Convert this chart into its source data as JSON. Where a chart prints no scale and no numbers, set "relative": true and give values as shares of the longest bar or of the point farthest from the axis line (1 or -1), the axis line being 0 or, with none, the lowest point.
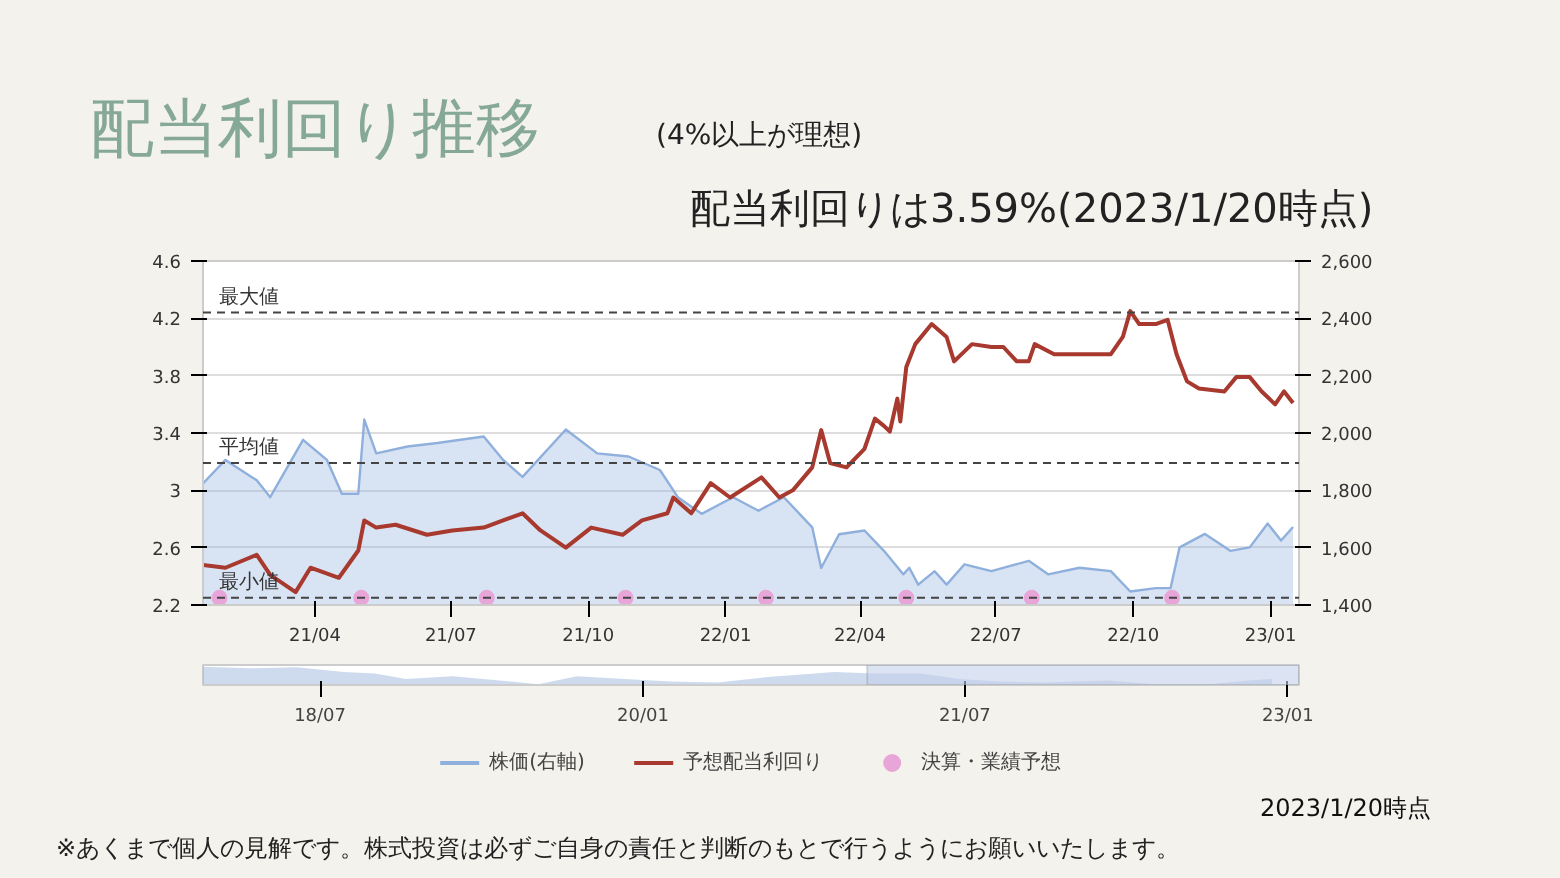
{
  "chart_data": [
    {
      "type": "line",
      "title": "配当利回り推移",
      "subtitle": "(4%以上が理想)",
      "annotations": [
        "配当利回りは3.59%(2023/1/20時点)",
        "2023/1/20時点",
        "※あくまで個人の見解です。株式投資は必ずご自身の責任と判断のもとで行うようにお願いいたします。"
      ],
      "xlim": [
        "2021-01-16",
        "2023-01-20"
      ],
      "xticks": [
        {
          "value": "2021-04-01",
          "label": "21/04"
        },
        {
          "value": "2021-07-01",
          "label": "21/07"
        },
        {
          "value": "2021-10-01",
          "label": "21/10"
        },
        {
          "value": "2022-01-01",
          "label": "22/01"
        },
        {
          "value": "2022-04-01",
          "label": "22/04"
        },
        {
          "value": "2022-07-01",
          "label": "22/07"
        },
        {
          "value": "2022-10-01",
          "label": "22/10"
        },
        {
          "value": "2023-01-01",
          "label": "23/01"
        }
      ],
      "ylim": [
        2.2,
        4.6
      ],
      "yticks": [
        2.2,
        2.6,
        3,
        3.4,
        3.8,
        4.2,
        4.6
      ],
      "y2lim": [
        1400,
        2600
      ],
      "y2ticks": [
        {
          "value": 1400,
          "label": "1,400"
        },
        {
          "value": 1600,
          "label": "1,600"
        },
        {
          "value": 1800,
          "label": "1,800"
        },
        {
          "value": 2000,
          "label": "2,000"
        },
        {
          "value": 2200,
          "label": "2,200"
        },
        {
          "value": 2400,
          "label": "2,400"
        },
        {
          "value": 2600,
          "label": "2,600"
        }
      ],
      "grid": "y",
      "legend": "bottom",
      "ref_lines": [
        {
          "axis": "y",
          "value": 4.24,
          "label": "最大値",
          "line_style": "dashed"
        },
        {
          "axis": "y",
          "value": 3.19,
          "label": "平均値",
          "line_style": "dashed"
        },
        {
          "axis": "y",
          "value": 2.25,
          "label": "最小値",
          "line_style": "dashed"
        }
      ],
      "series": [
        {
          "name": "株価(右軸)",
          "type": "area",
          "axis": "y2",
          "color": "#8fb0dc",
          "x": [
            "2021-01-16",
            "2021-01-31",
            "2021-02-21",
            "2021-03-02",
            "2021-03-24",
            "2021-04-09",
            "2021-04-19",
            "2021-04-30",
            "2021-05-04",
            "2021-05-12",
            "2021-06-02",
            "2021-06-22",
            "2021-07-23",
            "2021-08-05",
            "2021-08-18",
            "2021-09-16",
            "2021-10-07",
            "2021-10-28",
            "2021-11-18",
            "2021-11-30",
            "2021-12-16",
            "2022-01-06",
            "2022-01-23",
            "2022-02-09",
            "2022-02-28",
            "2022-03-06",
            "2022-03-18",
            "2022-04-04",
            "2022-04-17",
            "2022-04-30",
            "2022-05-04",
            "2022-05-10",
            "2022-05-21",
            "2022-05-29",
            "2022-06-10",
            "2022-06-28",
            "2022-07-23",
            "2022-08-05",
            "2022-08-26",
            "2022-09-16",
            "2022-09-29",
            "2022-10-16",
            "2022-10-26",
            "2022-11-01",
            "2022-11-18",
            "2022-12-05",
            "2022-12-18",
            "2022-12-30",
            "2023-01-08",
            "2023-01-16"
          ],
          "values": [
            1824,
            1906,
            1835,
            1776,
            1976,
            1906,
            1788,
            1788,
            2047,
            1929,
            1953,
            1965,
            1988,
            1906,
            1847,
            2012,
            1929,
            1918,
            1871,
            1776,
            1718,
            1776,
            1729,
            1776,
            1671,
            1529,
            1647,
            1660,
            1589,
            1507,
            1530,
            1471,
            1518,
            1471,
            1542,
            1518,
            1554,
            1507,
            1530,
            1518,
            1447,
            1459,
            1459,
            1601,
            1648,
            1589,
            1601,
            1684,
            1625,
            1672
          ]
        },
        {
          "name": "予想配当利回り",
          "color": "#a8392e",
          "x": [
            "2021-01-16",
            "2021-01-31",
            "2021-02-21",
            "2021-03-02",
            "2021-03-19",
            "2021-03-29",
            "2021-04-17",
            "2021-04-30",
            "2021-05-04",
            "2021-05-12",
            "2021-05-25",
            "2021-06-15",
            "2021-07-02",
            "2021-07-23",
            "2021-08-05",
            "2021-08-18",
            "2021-08-30",
            "2021-09-16",
            "2021-10-03",
            "2021-10-24",
            "2021-11-06",
            "2021-11-23",
            "2021-11-27",
            "2021-12-09",
            "2021-12-22",
            "2022-01-04",
            "2022-01-25",
            "2022-02-06",
            "2022-02-15",
            "2022-02-28",
            "2022-03-06",
            "2022-03-12",
            "2022-03-23",
            "2022-04-04",
            "2022-04-11",
            "2022-04-17",
            "2022-04-21",
            "2022-04-26",
            "2022-04-28",
            "2022-05-02",
            "2022-05-08",
            "2022-05-19",
            "2022-05-29",
            "2022-06-03",
            "2022-06-15",
            "2022-06-28",
            "2022-07-06",
            "2022-07-15",
            "2022-07-23",
            "2022-07-27",
            "2022-08-09",
            "2022-08-30",
            "2022-09-16",
            "2022-09-24",
            "2022-09-29",
            "2022-10-05",
            "2022-10-16",
            "2022-10-24",
            "2022-10-30",
            "2022-11-06",
            "2022-11-14",
            "2022-12-01",
            "2022-12-09",
            "2022-12-18",
            "2022-12-26",
            "2023-01-04",
            "2023-01-10",
            "2023-01-16"
          ],
          "values": [
            2.48,
            2.46,
            2.55,
            2.41,
            2.29,
            2.46,
            2.39,
            2.58,
            2.79,
            2.74,
            2.76,
            2.69,
            2.72,
            2.74,
            2.79,
            2.84,
            2.72,
            2.6,
            2.74,
            2.69,
            2.79,
            2.84,
            2.95,
            2.84,
            3.05,
            2.95,
            3.09,
            2.95,
            3.0,
            3.16,
            3.42,
            3.19,
            3.16,
            3.29,
            3.5,
            3.45,
            3.41,
            3.64,
            3.48,
            3.86,
            4.02,
            4.16,
            4.07,
            3.9,
            4.02,
            4.0,
            4.0,
            3.9,
            3.9,
            4.02,
            3.95,
            3.95,
            3.95,
            4.07,
            4.25,
            4.16,
            4.16,
            4.19,
            3.95,
            3.76,
            3.71,
            3.69,
            3.79,
            3.79,
            3.69,
            3.6,
            3.69,
            3.61
          ]
        },
        {
          "name": "決算・業績予想",
          "type": "scatter",
          "marker": "circle",
          "color": "#e8a6d8",
          "x": [
            "2021-01-27",
            "2021-05-02",
            "2021-07-25",
            "2021-10-26",
            "2022-01-28",
            "2022-05-02",
            "2022-07-25",
            "2022-10-27"
          ],
          "values": [
            2.25,
            2.25,
            2.25,
            2.25,
            2.25,
            2.25,
            2.25,
            2.25
          ]
        }
      ]
    },
    {
      "type": "area",
      "relative": true,
      "color": "#9db6dd",
      "x": [
        "2017-12-14",
        "2018-03-04",
        "2018-05-22",
        "2018-08-10",
        "2018-10-02",
        "2018-11-24",
        "2019-02-11",
        "2019-05-02",
        "2019-07-07",
        "2019-09-11",
        "2019-11-30",
        "2020-02-18",
        "2020-05-07",
        "2020-07-26",
        "2020-11-22",
        "2021-01-27",
        "2021-04-17",
        "2021-06-22",
        "2021-08-28",
        "2021-11-15",
        "2022-03-01",
        "2022-05-20",
        "2022-08-21",
        "2022-10-26",
        "2022-12-05"
      ],
      "values": [
        1.0,
        0.91,
        0.97,
        0.7,
        0.61,
        0.3,
        0.45,
        0.21,
        0,
        0.45,
        0.3,
        0.15,
        0.09,
        0.39,
        0.7,
        0.61,
        0.61,
        0.3,
        0.15,
        0.09,
        0.21,
        0,
        0,
        0.21,
        0.3
      ],
      "xlim": [
        "2017-12-14",
        "2023-01-20"
      ],
      "xticks": [
        {
          "value": "2018-07-01",
          "label": "18/07"
        },
        {
          "value": "2020-01-01",
          "label": "20/01"
        },
        {
          "value": "2021-07-01",
          "label": "21/07"
        },
        {
          "value": "2023-01-01",
          "label": "23/01"
        }
      ],
      "bands": [
        {
          "axis": "x",
          "from": "2021-01-16",
          "to": "2023-01-20",
          "color": "#c5d0ea"
        }
      ]
    }
  ]
}
